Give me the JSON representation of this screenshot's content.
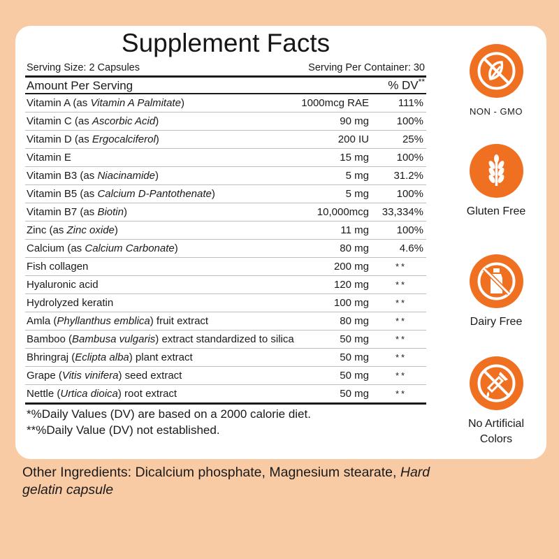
{
  "facts": {
    "title": "Supplement Facts",
    "serving_size": "Serving Size: 2 Capsules",
    "servings_per_container": "Serving Per Container: 30",
    "amount_per_serving": "Amount Per Serving",
    "dv_header": "% DV",
    "dv_header_mark": "**",
    "rows": [
      {
        "n": "Vitamin A (as ",
        "i": "Vitamin A Palmitate",
        "s": ")",
        "amount": "1000mcg RAE",
        "pct": "111%"
      },
      {
        "n": "Vitamin C (as ",
        "i": "Ascorbic Acid",
        "s": ")",
        "amount": "90 mg",
        "pct": "100%"
      },
      {
        "n": "Vitamin D (as ",
        "i": "Ergocalciferol",
        "s": ")",
        "amount": "200 IU",
        "pct": "25%"
      },
      {
        "n": "Vitamin E",
        "i": "",
        "s": "",
        "amount": "15 mg",
        "pct": "100%"
      },
      {
        "n": "Vitamin B3 (as ",
        "i": "Niacinamide",
        "s": ")",
        "amount": "5 mg",
        "pct": "31.2%"
      },
      {
        "n": "Vitamin B5 (as ",
        "i": "Calcium D-Pantothenate",
        "s": ")",
        "amount": "5 mg",
        "pct": "100%"
      },
      {
        "n": "Vitamin B7 (as ",
        "i": "Biotin",
        "s": ")",
        "amount": "10,000mcg",
        "pct": "33,334%"
      },
      {
        "n": "Zinc (as ",
        "i": "Zinc oxide",
        "s": ")",
        "amount": "11 mg",
        "pct": "100%"
      },
      {
        "n": "Calcium (as ",
        "i": "Calcium Carbonate",
        "s": ")",
        "amount": "80 mg",
        "pct": "4.6%"
      },
      {
        "n": "Fish collagen",
        "i": "",
        "s": "",
        "amount": "200 mg",
        "pct": "**"
      },
      {
        "n": "Hyaluronic acid",
        "i": "",
        "s": "",
        "amount": "120 mg",
        "pct": "**"
      },
      {
        "n": "Hydrolyzed keratin",
        "i": "",
        "s": "",
        "amount": "100 mg",
        "pct": "**"
      },
      {
        "n": "Amla (",
        "i": "Phyllanthus emblica",
        "s": ") fruit extract",
        "amount": "80 mg",
        "pct": "**"
      },
      {
        "n": "Bamboo (",
        "i": "Bambusa vulgaris",
        "s": ") extract standardized to silica",
        "amount": "50 mg",
        "pct": "**"
      },
      {
        "n": "Bhringraj (",
        "i": "Eclipta alba",
        "s": ") plant extract",
        "amount": "50 mg",
        "pct": "**"
      },
      {
        "n": "Grape (",
        "i": "Vitis vinifera",
        "s": ") seed extract",
        "amount": "50 mg",
        "pct": "**"
      },
      {
        "n": "Nettle (",
        "i": "Urtica dioica",
        "s": ") root extract",
        "amount": "50 mg",
        "pct": "**"
      }
    ],
    "footnote_1": "*%Daily Values (DV) are based on a 2000 calorie diet.",
    "footnote_2": "**%Daily Value (DV) not established."
  },
  "other_ingredients": {
    "prefix": "Other Ingredients: Dicalcium phosphate, Magnesium stearate, ",
    "italic": "Hard gelatin capsule"
  },
  "badges": [
    {
      "label": "NON - GMO",
      "icon": "non-gmo-leaf-icon"
    },
    {
      "label": "Gluten Free",
      "icon": "wheat-icon"
    },
    {
      "label": "Dairy Free",
      "icon": "milk-bottle-icon"
    },
    {
      "label": "No Artificial Colors",
      "icon": "dropper-icon"
    }
  ],
  "colors": {
    "background": "#F9CBA5",
    "badge": "#F07022",
    "card": "#FFFFFF",
    "text": "#1A1A1A"
  }
}
